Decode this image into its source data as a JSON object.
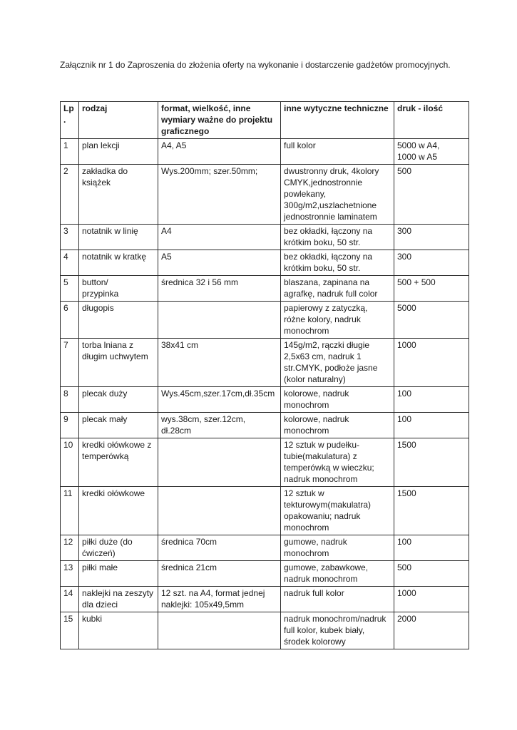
{
  "document": {
    "title": "Załącznik nr 1 do Zaproszenia do złożenia oferty na wykonanie i dostarczenie gadżetów promocyjnych.",
    "table": {
      "headers": {
        "lp": "Lp.",
        "rodzaj": "rodzaj",
        "format": "format, wielkość, inne wymiary ważne do projektu graficznego",
        "wytyczne": "inne wytyczne techniczne",
        "druk": "druk - ilość"
      },
      "rows": [
        [
          "1",
          "plan lekcji",
          "A4, A5",
          "full kolor",
          "5000 w A4,\n1000 w A5"
        ],
        [
          "2",
          "zakładka do książek",
          "Wys.200mm; szer.50mm;",
          "dwustronny druk, 4kolory CMYK,jednostronnie powlekany, 300g/m2,uszlachetnione jednostronnie laminatem",
          "500"
        ],
        [
          "3",
          "notatnik w linię",
          "A4",
          "bez okładki, łączony na krótkim boku, 50 str.",
          "300"
        ],
        [
          "4",
          "notatnik w kratkę",
          "A5",
          "bez okładki, łączony na krótkim boku, 50 str.",
          "300"
        ],
        [
          "5",
          "button/\nprzypinka",
          "średnica 32 i 56 mm",
          "blaszana, zapinana na agrafkę, nadruk full color",
          "500 + 500"
        ],
        [
          "6",
          "długopis",
          "",
          "papierowy z zatyczką, różne kolory, nadruk monochrom",
          "5000"
        ],
        [
          "7",
          "torba lniana z długim uchwytem",
          "38x41 cm",
          "145g/m2, rączki długie 2,5x63 cm, nadruk 1 str.CMYK, podłoże jasne (kolor naturalny)",
          "1000"
        ],
        [
          "8",
          "plecak duży",
          "Wys.45cm,szer.17cm,dł.35cm",
          "kolorowe, nadruk monochrom",
          "100"
        ],
        [
          "9",
          "plecak mały",
          "wys.38cm, szer.12cm, dł.28cm",
          "kolorowe, nadruk monochrom",
          "100"
        ],
        [
          "10",
          "kredki ołówkowe z temperówką",
          "",
          "12 sztuk w pudełku-tubie(makulatura) z temperówką w wieczku; nadruk monochrom",
          "1500"
        ],
        [
          "11",
          "kredki ołówkowe",
          "",
          "12 sztuk w tekturowym(makulatra) opakowaniu; nadruk monochrom",
          "1500"
        ],
        [
          "12",
          "piłki duże (do ćwiczeń)",
          "średnica 70cm",
          "gumowe, nadruk monochrom",
          "100"
        ],
        [
          "13",
          "piłki małe",
          "średnica 21cm",
          "gumowe, zabawkowe, nadruk monochrom",
          "500"
        ],
        [
          "14",
          "naklejki na zeszyty dla dzieci",
          "12 szt. na A4, format jednej naklejki: 105x49,5mm",
          "nadruk full kolor",
          "1000"
        ],
        [
          "15",
          "kubki",
          "",
          "nadruk monochrom/nadruk full kolor, kubek biały, środek kolorowy",
          "2000"
        ]
      ]
    }
  },
  "colors": {
    "background": "#ffffff",
    "text": "#1a1a1a",
    "border": "#2b2b2b"
  }
}
